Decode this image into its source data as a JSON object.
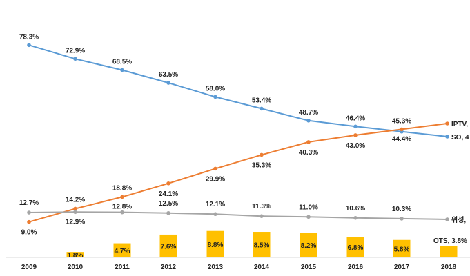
{
  "chart_data": {
    "type": "line",
    "x": [
      "2009",
      "2010",
      "2011",
      "2012",
      "2013",
      "2014",
      "2015",
      "2016",
      "2017",
      "2018"
    ],
    "ylim": [
      0,
      85
    ],
    "grid": false,
    "series": [
      {
        "name": "SO, 4",
        "type": "line",
        "color": "#5b9bd5",
        "values": [
          78.3,
          72.9,
          68.5,
          63.5,
          58.0,
          53.4,
          48.7,
          46.4,
          44.4,
          null
        ],
        "labels": [
          "78.3%",
          "72.9%",
          "68.5%",
          "63.5%",
          "58.0%",
          "53.4%",
          "48.7%",
          "46.4%",
          "44.4%",
          ""
        ]
      },
      {
        "name": "IPTV, 4",
        "type": "line",
        "color": "#ed7d31",
        "values": [
          9.0,
          14.2,
          18.8,
          24.1,
          29.9,
          35.3,
          40.3,
          43.0,
          45.3,
          null
        ],
        "labels": [
          "9.0%",
          "14.2%",
          "18.8%",
          "24.1%",
          "29.9%",
          "35.3%",
          "40.3%",
          "43.0%",
          "45.3%",
          ""
        ]
      },
      {
        "name": "위성,",
        "type": "line",
        "color": "#a5a5a5",
        "values": [
          12.7,
          12.9,
          12.8,
          12.5,
          12.1,
          11.3,
          11.0,
          10.6,
          10.3,
          null
        ],
        "labels": [
          "12.7%",
          "12.9%",
          "12.8%",
          "12.5%",
          "12.1%",
          "11.3%",
          "11.0%",
          "10.6%",
          "10.3%",
          ""
        ]
      },
      {
        "name": "OTS, 3.8%",
        "type": "bar",
        "color": "#ffc000",
        "values": [
          null,
          1.8,
          4.7,
          7.6,
          8.8,
          8.5,
          8.2,
          6.8,
          5.8,
          3.8
        ],
        "labels": [
          "",
          "1.8%",
          "4.7%",
          "7.6%",
          "8.8%",
          "8.5%",
          "8.2%",
          "6.8%",
          "5.8%",
          ""
        ]
      }
    ]
  }
}
